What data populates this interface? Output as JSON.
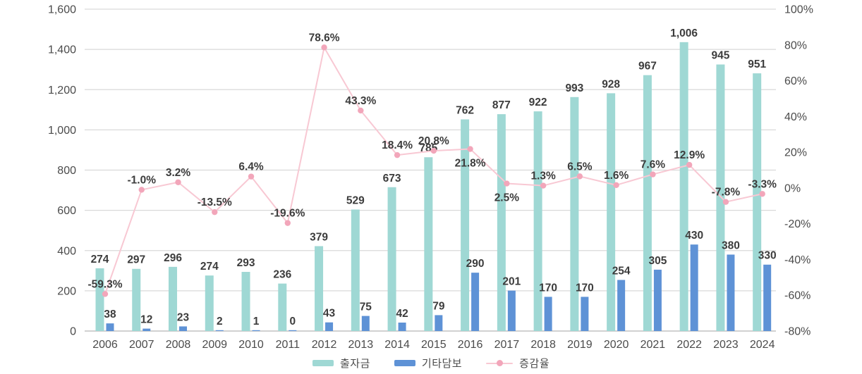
{
  "chart_data": {
    "type": "bar",
    "subtype": "grouped-bar-with-line-overlay",
    "categories": [
      "2006",
      "2007",
      "2008",
      "2009",
      "2010",
      "2011",
      "2012",
      "2013",
      "2014",
      "2015",
      "2016",
      "2017",
      "2018",
      "2019",
      "2020",
      "2021",
      "2022",
      "2023",
      "2024"
    ],
    "series": [
      {
        "name": "출자금",
        "type": "bar",
        "axis": "left",
        "color": "#9fd8d4",
        "values": [
          274,
          297,
          296,
          274,
          293,
          236,
          379,
          529,
          673,
          785,
          762,
          877,
          922,
          993,
          928,
          967,
          1006,
          945,
          951
        ]
      },
      {
        "name": "기타담보",
        "type": "bar",
        "axis": "left",
        "color": "#5e92d6",
        "values": [
          38,
          12,
          23,
          2,
          1,
          0,
          43,
          75,
          42,
          79,
          290,
          201,
          170,
          170,
          254,
          305,
          430,
          380,
          330
        ]
      },
      {
        "name": "증감율",
        "type": "line",
        "axis": "right",
        "color": "#f8c8d3",
        "marker_color": "#f2a6ba",
        "values_pct": [
          -59.3,
          -1.0,
          3.2,
          -13.5,
          6.4,
          -19.6,
          78.6,
          43.3,
          18.4,
          20.8,
          21.8,
          2.5,
          1.3,
          6.5,
          1.6,
          7.6,
          12.9,
          -7.8,
          -3.3
        ],
        "labels": [
          "-59.3%",
          "-1.0%",
          "3.2%",
          "-13.5%",
          "6.4%",
          "-19.6%",
          "78.6%",
          "43.3%",
          "18.4%",
          "20.8%",
          "21.8%",
          "2.5%",
          "1.3%",
          "6.5%",
          "1.6%",
          "7.6%",
          "12.9%",
          "-7.8%",
          "-3.3%"
        ],
        "label_below_indices": [
          10,
          11
        ]
      }
    ],
    "left_axis": {
      "min": 0,
      "max": 1600,
      "step": 200,
      "tick_labels": [
        "0",
        "200",
        "400",
        "600",
        "800",
        "1,000",
        "1,200",
        "1,400",
        "1,600"
      ]
    },
    "right_axis": {
      "min": -80,
      "max": 100,
      "step": 20,
      "tick_labels": [
        "-80%",
        "-60%",
        "-40%",
        "-20%",
        "0%",
        "20%",
        "40%",
        "60%",
        "80%",
        "100%"
      ]
    },
    "title": "",
    "xlabel": "",
    "ylabel": "",
    "grid": "horizontal-only",
    "legend_position": "bottom-center",
    "bar_render_note": "teal bar pixel height equals 출자금+기타담보 total while its label shows the 출자금 value",
    "text_color": "#3c3c3c",
    "axis_text_color": "#4b4b4b",
    "grid_color": "#d9d9d9",
    "baseline_color": "#c2c2c2"
  }
}
